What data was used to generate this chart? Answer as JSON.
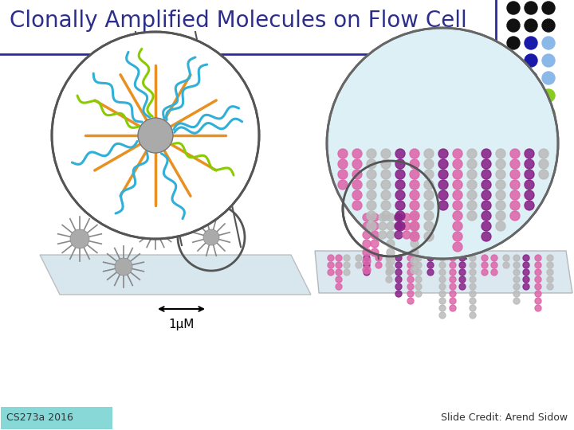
{
  "title": "Clonally Amplified Molecules on Flow Cell",
  "title_color": "#2d2d8a",
  "title_fontsize": 20,
  "footer_left": "CS273a 2016",
  "footer_right": "Slide Credit: Arend Sidow",
  "footer_fontsize": 9,
  "footer_left_bg": "#88d8d8",
  "header_line_color": "#2a2a9c",
  "bg_color": "#ffffff",
  "dots_grid_colors": [
    [
      "#111111",
      "#111111",
      "#111111"
    ],
    [
      "#111111",
      "#111111",
      "#111111"
    ],
    [
      "#111111",
      "#1a1aaa",
      "#8ab8e8"
    ],
    [
      "#111111",
      "#1a1aaa",
      "#8ab8e8"
    ],
    [
      "#1a1aaa",
      "#1a1aaa",
      "#8ab8e8"
    ],
    [
      "#1a1aaa",
      "#8ab8e8",
      "#88cc22"
    ],
    [
      "#8ab8e8",
      "#8ab8e8",
      "#88cc22"
    ],
    [
      "#88cc22",
      "#88cc22",
      "#88cc22"
    ]
  ],
  "label_1um": "1μM",
  "orange_color": "#e89020",
  "cyan_color": "#30b0d8",
  "green_color": "#88cc00",
  "gray_sphere": "#aaaaaa",
  "pink_color": "#dd66aa",
  "purple_color": "#882288",
  "light_gray_dot": "#bbbbbb",
  "surface_color": "#c8dce8",
  "surface_edge": "#888888"
}
